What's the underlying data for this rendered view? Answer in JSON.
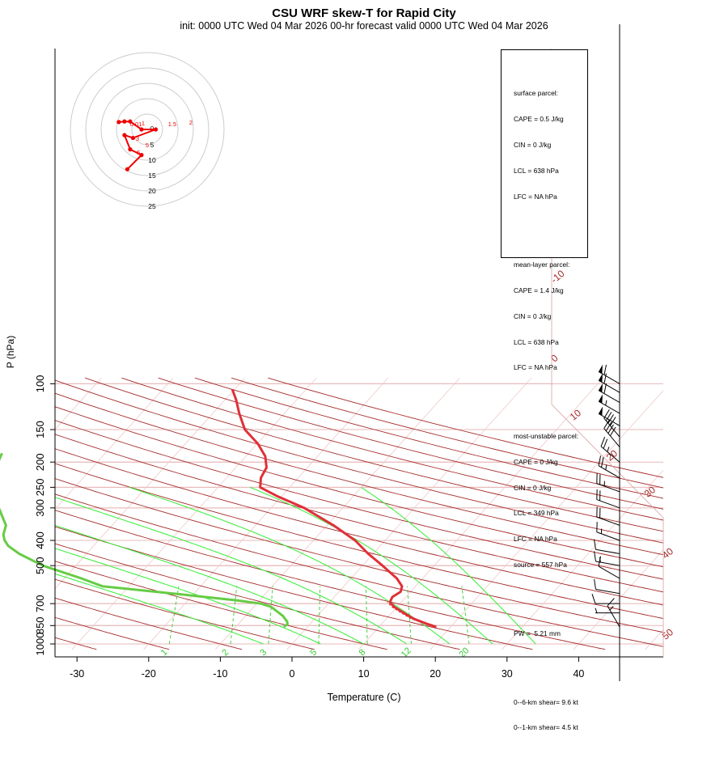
{
  "title": "CSU WRF skew-T for Rapid City",
  "subtitle": "init: 0000 UTC Wed 04 Mar 2026    00-hr forecast valid 0000 UTC Wed 04 Mar 2026",
  "chart_data": {
    "type": "line",
    "title": "CSU WRF skew-T for Rapid City",
    "xlabel": "Temperature (C)",
    "ylabel": "P (hPa)",
    "y_scale": "log",
    "xlim": [
      -33,
      45
    ],
    "ylim": [
      1050,
      100
    ],
    "x_ticks": [
      -30,
      -20,
      -10,
      0,
      10,
      20,
      30,
      40
    ],
    "y_ticks": [
      100,
      150,
      200,
      250,
      300,
      400,
      500,
      700,
      850,
      1000
    ],
    "isotherm_labels": [
      "-10",
      "0",
      "10",
      "20",
      "30",
      "40",
      "50"
    ],
    "mixing_ratio_labels": [
      "1",
      "2",
      "3",
      "5",
      "8",
      "12",
      "20"
    ],
    "series": [
      {
        "name": "Temperature",
        "color": "#e0303a",
        "values": [
          {
            "p": 860,
            "t": 18
          },
          {
            "p": 840,
            "t": 16.5
          },
          {
            "p": 800,
            "t": 13.8
          },
          {
            "p": 760,
            "t": 11.7
          },
          {
            "p": 720,
            "t": 9.6
          },
          {
            "p": 690,
            "t": 8.4
          },
          {
            "p": 660,
            "t": 8.1
          },
          {
            "p": 630,
            "t": 8.6
          },
          {
            "p": 600,
            "t": 8.1
          },
          {
            "p": 560,
            "t": 6.4
          },
          {
            "p": 500,
            "t": 2.8
          },
          {
            "p": 450,
            "t": -0.7
          },
          {
            "p": 400,
            "t": -4.2
          },
          {
            "p": 350,
            "t": -9.1
          },
          {
            "p": 300,
            "t": -15.4
          },
          {
            "p": 270,
            "t": -20.7
          },
          {
            "p": 250,
            "t": -24.1
          },
          {
            "p": 230,
            "t": -25.2
          },
          {
            "p": 210,
            "t": -25.7
          },
          {
            "p": 190,
            "t": -27.3
          },
          {
            "p": 170,
            "t": -29.9
          },
          {
            "p": 150,
            "t": -33.5
          },
          {
            "p": 130,
            "t": -36.3
          },
          {
            "p": 115,
            "t": -38.5
          },
          {
            "p": 105,
            "t": -40.3
          }
        ]
      },
      {
        "name": "Dewpoint",
        "color": "#66cc44",
        "values": [
          {
            "p": 860,
            "t": -3.3
          },
          {
            "p": 840,
            "t": -3.1
          },
          {
            "p": 820,
            "t": -3.5
          },
          {
            "p": 780,
            "t": -4.8
          },
          {
            "p": 720,
            "t": -7.6
          },
          {
            "p": 700,
            "t": -9.4
          },
          {
            "p": 680,
            "t": -13.2
          },
          {
            "p": 650,
            "t": -20.5
          },
          {
            "p": 600,
            "t": -33.7
          },
          {
            "p": 560,
            "t": -37.6
          },
          {
            "p": 500,
            "t": -44.6
          },
          {
            "p": 450,
            "t": -49.4
          },
          {
            "p": 420,
            "t": -51.9
          },
          {
            "p": 400,
            "t": -53.1
          },
          {
            "p": 380,
            "t": -54
          },
          {
            "p": 350,
            "t": -54.8
          },
          {
            "p": 300,
            "t": -58
          },
          {
            "p": 250,
            "t": -61.5
          },
          {
            "p": 210,
            "t": -63.5
          },
          {
            "p": 185,
            "t": -64.4
          }
        ]
      }
    ],
    "wind_barbs_kt": [
      {
        "p": 860,
        "wdir": 330,
        "wspd": 15
      },
      {
        "p": 760,
        "wdir": 270,
        "wspd": 5
      },
      {
        "p": 700,
        "wdir": 270,
        "wspd": 10
      },
      {
        "p": 640,
        "wdir": 280,
        "wspd": 10
      },
      {
        "p": 560,
        "wdir": 300,
        "wspd": 10
      },
      {
        "p": 500,
        "wdir": 280,
        "wspd": 15
      },
      {
        "p": 450,
        "wdir": 280,
        "wspd": 10
      },
      {
        "p": 400,
        "wdir": 290,
        "wspd": 15
      },
      {
        "p": 350,
        "wdir": 290,
        "wspd": 20
      },
      {
        "p": 300,
        "wdir": 290,
        "wspd": 20
      },
      {
        "p": 260,
        "wdir": 290,
        "wspd": 25
      },
      {
        "p": 230,
        "wdir": 300,
        "wspd": 25
      },
      {
        "p": 200,
        "wdir": 310,
        "wspd": 25
      },
      {
        "p": 175,
        "wdir": 320,
        "wspd": 40
      },
      {
        "p": 160,
        "wdir": 320,
        "wspd": 40
      },
      {
        "p": 145,
        "wdir": 300,
        "wspd": 50
      },
      {
        "p": 130,
        "wdir": 300,
        "wspd": 55
      },
      {
        "p": 118,
        "wdir": 300,
        "wspd": 60
      },
      {
        "p": 108,
        "wdir": 300,
        "wspd": 60
      },
      {
        "p": 100,
        "wdir": 300,
        "wspd": 60
      }
    ],
    "hodograph": {
      "ring_labels": [
        "5",
        "10",
        "15",
        "20",
        "25"
      ],
      "point_labels": [
        "0.01",
        "1",
        "1.5",
        "2",
        "3",
        "5",
        "6"
      ],
      "points": [
        {
          "u": -5.0,
          "v": 1.3
        },
        {
          "u": -4.0,
          "v": 1.4
        },
        {
          "u": -3.0,
          "v": 1.4
        },
        {
          "u": -1.0,
          "v": 0.0
        },
        {
          "u": 1.5,
          "v": 0.0
        },
        {
          "u": -2.5,
          "v": -1.5
        },
        {
          "u": -4.0,
          "v": -1.0
        },
        {
          "u": -3.0,
          "v": -3.5
        },
        {
          "u": -1.0,
          "v": -4.5
        },
        {
          "u": -3.5,
          "v": -7.0
        }
      ]
    }
  },
  "parcel_info": {
    "surface": [
      "surface parcel:",
      "CAPE = 0.5 J/kg",
      "CIN = 0 J/kg",
      "LCL = 638 hPa",
      "LFC = NA hPa"
    ],
    "mean_layer": [
      "mean-layer parcel:",
      "CAPE = 1.4 J/kg",
      "CIN = 0 J/kg",
      "LCL = 638 hPa",
      "LFC = NA hPa"
    ],
    "most_unstable": [
      "most-unstable parcel:",
      "CAPE = 0 J/kg",
      "CIN = 0 J/kg",
      "LCL = 349 hPa",
      "LFC = NA hPa",
      "source = 557 hPa"
    ],
    "pw": "PW =  5.21 mm",
    "shear": [
      "0--6-km shear= 9.6 kt",
      "0--1-km shear= 4.5 kt"
    ]
  }
}
